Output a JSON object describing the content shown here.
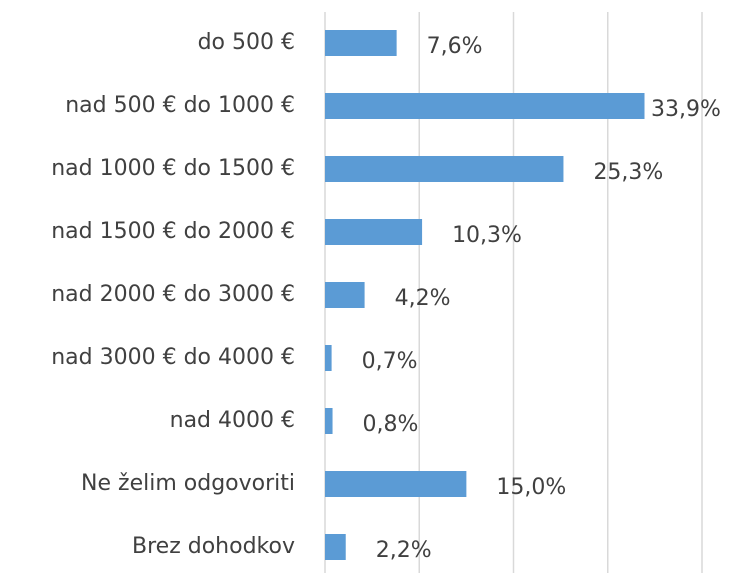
{
  "chart_data": {
    "type": "bar",
    "orientation": "horizontal",
    "categories": [
      "do 500 €",
      "nad 500 € do 1000 €",
      "nad 1000 € do 1500 €",
      "nad 1500 € do 2000 €",
      "nad 2000 € do 3000 €",
      "nad 3000 € do 4000 €",
      "nad 4000 €",
      "Ne želim odgovoriti",
      "Brez dohodkov"
    ],
    "values": [
      7.6,
      33.9,
      25.3,
      10.3,
      4.2,
      0.7,
      0.8,
      15.0,
      2.2
    ],
    "value_labels": [
      "7,6%",
      "33,9%",
      "25,3%",
      "10,3%",
      "4,2%",
      "0,7%",
      "0,8%",
      "15,0%",
      "2,2%"
    ],
    "color": "#5b9bd5",
    "xlim": [
      0,
      40
    ],
    "xticks": [
      0,
      10,
      20,
      30,
      40
    ],
    "grid": true
  }
}
